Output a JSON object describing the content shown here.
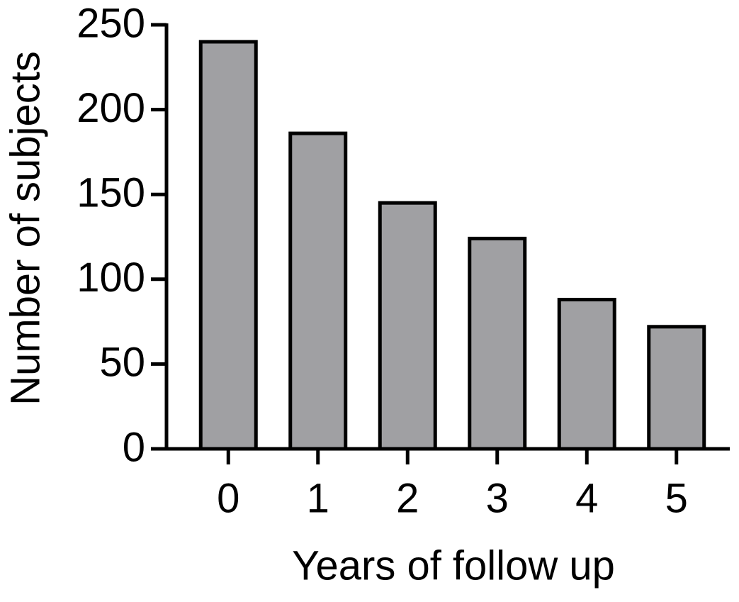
{
  "chart_data": {
    "type": "bar",
    "x_label": "Years of follow up",
    "y_label": "Number of subjects",
    "categories": [
      "0",
      "1",
      "2",
      "3",
      "4",
      "5"
    ],
    "values": [
      240,
      186,
      145,
      124,
      88,
      72
    ],
    "color": "#a0a0a3",
    "ylim": [
      0,
      250
    ],
    "yticks": [
      0,
      50,
      100,
      150,
      200,
      250
    ],
    "grid": false
  }
}
